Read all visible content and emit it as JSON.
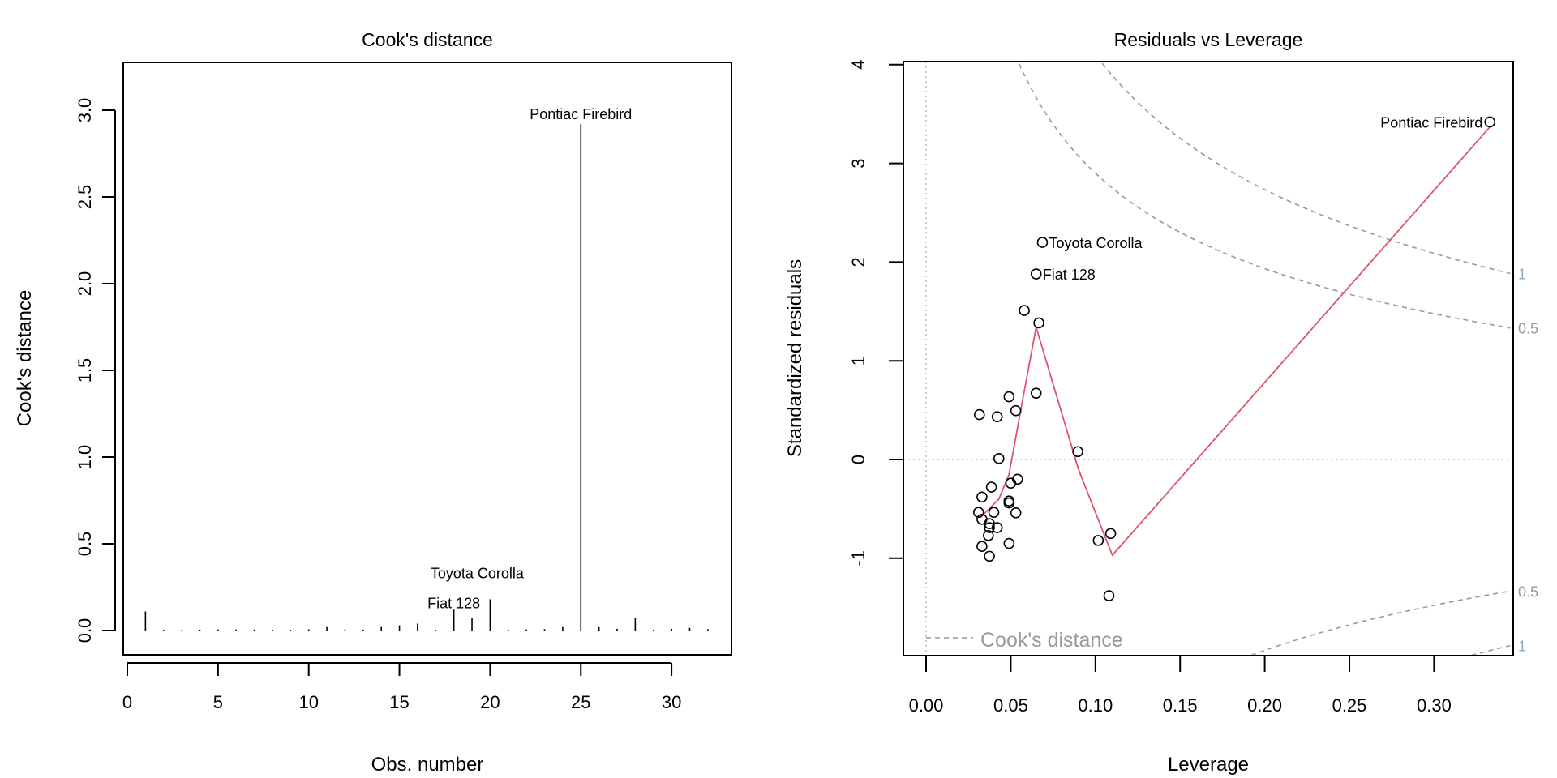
{
  "chart_data": [
    {
      "type": "bar",
      "title": "Cook's distance",
      "xlabel": "Obs. number",
      "ylabel": "Cook's distance",
      "xlim": [
        0,
        32
      ],
      "ylim": [
        0,
        3.0
      ],
      "xticks": [
        0,
        5,
        10,
        15,
        20,
        25,
        30
      ],
      "yticks": [
        "0.0",
        "0.5",
        "1.0",
        "1.5",
        "2.0",
        "2.5",
        "3.0"
      ],
      "grid": false,
      "x": [
        1,
        2,
        3,
        4,
        5,
        6,
        7,
        8,
        9,
        10,
        11,
        12,
        13,
        14,
        15,
        16,
        17,
        18,
        19,
        20,
        21,
        22,
        23,
        24,
        25,
        26,
        27,
        28,
        29,
        30,
        31,
        32
      ],
      "values": [
        0.11,
        0.003,
        0.002,
        0.005,
        0.006,
        0.006,
        0.006,
        0.005,
        0.003,
        0.007,
        0.02,
        0.006,
        0.005,
        0.02,
        0.03,
        0.04,
        0.003,
        0.12,
        0.07,
        0.18,
        0.005,
        0.006,
        0.008,
        0.02,
        2.92,
        0.02,
        0.01,
        0.07,
        0.003,
        0.01,
        0.015,
        0.008
      ],
      "labels": [
        {
          "obs": 25,
          "text": "Pontiac Firebird"
        },
        {
          "obs": 20,
          "text": "Toyota Corolla"
        },
        {
          "obs": 18,
          "text": "Fiat 128"
        }
      ]
    },
    {
      "type": "scatter",
      "title": "Residuals vs Leverage",
      "xlabel": "Leverage",
      "ylabel": "Standardized residuals",
      "xticks": [
        "0.00",
        "0.05",
        "0.10",
        "0.15",
        "0.20",
        "0.25",
        "0.30"
      ],
      "yticks": [
        "-1",
        "0",
        "1",
        "2",
        "3",
        "4"
      ],
      "xlim": [
        0,
        0.34
      ],
      "ylim": [
        -2.0,
        4.0
      ],
      "grid": false,
      "points": [
        [
          0.0315,
          0.455
        ],
        [
          0.042,
          0.434
        ],
        [
          0.049,
          0.636
        ],
        [
          0.053,
          0.495
        ],
        [
          0.065,
          0.672
        ],
        [
          0.058,
          1.51
        ],
        [
          0.0666,
          1.384
        ],
        [
          0.065,
          1.88
        ],
        [
          0.0687,
          2.2
        ],
        [
          0.333,
          3.42
        ],
        [
          0.043,
          0.01
        ],
        [
          0.0896,
          0.08
        ],
        [
          0.05,
          -0.24
        ],
        [
          0.054,
          -0.2
        ],
        [
          0.0386,
          -0.28
        ],
        [
          0.033,
          -0.38
        ],
        [
          0.049,
          -0.42
        ],
        [
          0.049,
          -0.44
        ],
        [
          0.031,
          -0.535
        ],
        [
          0.04,
          -0.535
        ],
        [
          0.053,
          -0.54
        ],
        [
          0.033,
          -0.606
        ],
        [
          0.0374,
          -0.65
        ],
        [
          0.0374,
          -0.69
        ],
        [
          0.042,
          -0.69
        ],
        [
          0.0368,
          -0.77
        ],
        [
          0.033,
          -0.88
        ],
        [
          0.049,
          -0.85
        ],
        [
          0.0374,
          -0.98
        ],
        [
          0.1017,
          -0.82
        ],
        [
          0.109,
          -0.75
        ],
        [
          0.108,
          -1.38
        ]
      ],
      "point_labels": [
        {
          "index": 9,
          "text": "Pontiac Firebird",
          "side": "left"
        },
        {
          "index": 8,
          "text": "Toyota Corolla",
          "side": "right"
        },
        {
          "index": 7,
          "text": "Fiat 128",
          "side": "right"
        }
      ],
      "smooth": [
        [
          0.032,
          -0.59
        ],
        [
          0.043,
          -0.4
        ],
        [
          0.049,
          -0.15
        ],
        [
          0.056,
          0.51
        ],
        [
          0.065,
          1.34
        ],
        [
          0.09,
          -0.1
        ],
        [
          0.11,
          -0.97
        ],
        [
          0.333,
          3.37
        ]
      ],
      "cook_contours": {
        "levels": [
          0.5,
          1
        ],
        "labels": [
          "0.5",
          "1",
          "0.5",
          "1"
        ],
        "legend": "Cook's distance"
      },
      "colors": {
        "points": "#000000",
        "smooth": "#DF536B",
        "contour": "#999999",
        "label_1": "#8FA8C8",
        "label_05": "#999999",
        "reference": "#BBBBBB"
      }
    }
  ]
}
